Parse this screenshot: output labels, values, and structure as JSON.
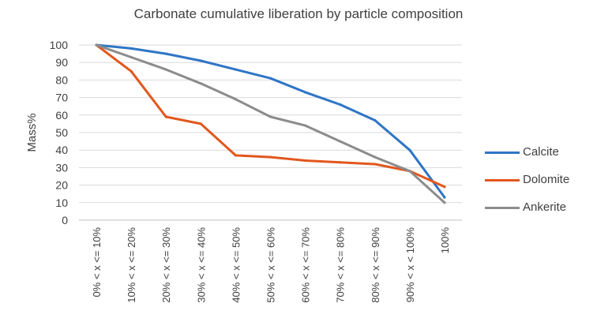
{
  "chart_data": {
    "type": "line",
    "title": "Carbonate cumulative liberation by particle composition",
    "xlabel": "",
    "ylabel": "Mass%",
    "ylim": [
      0,
      100
    ],
    "yticks": [
      "0",
      "10",
      "20",
      "30",
      "40",
      "50",
      "60",
      "70",
      "80",
      "90",
      "100"
    ],
    "grid": true,
    "legend_position": "right",
    "categories": [
      "0% < x <= 10%",
      "10% < x <= 20%",
      "20% < x <= 30%",
      "30% < x <= 40%",
      "40% < x <= 50%",
      "50% < x <= 60%",
      "60% < x <= 70%",
      "70% < x <= 80%",
      "80% < x <= 90%",
      "90% < x < 100%",
      "100%"
    ],
    "series": [
      {
        "name": "Calcite",
        "color": "#2f75c6",
        "values": [
          100,
          98,
          95,
          91,
          86,
          81,
          73,
          66,
          57,
          40,
          13
        ]
      },
      {
        "name": "Dolomite",
        "color": "#e2571e",
        "values": [
          100,
          85,
          59,
          55,
          37,
          36,
          34,
          33,
          32,
          28,
          19
        ]
      },
      {
        "name": "Ankerite",
        "color": "#8c8c8c",
        "values": [
          100,
          93,
          86,
          78,
          69,
          59,
          54,
          45,
          36,
          28,
          10
        ]
      }
    ]
  }
}
